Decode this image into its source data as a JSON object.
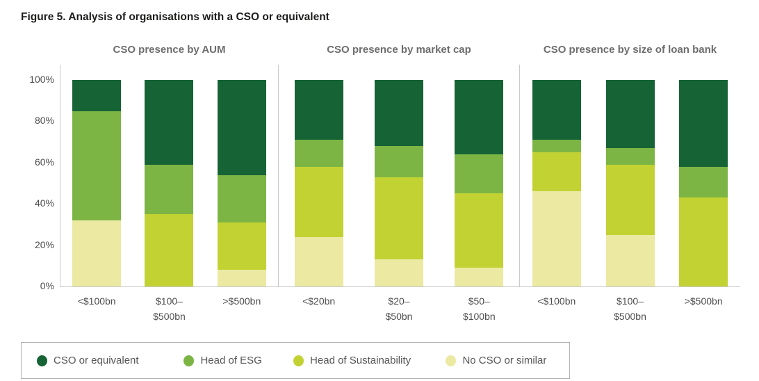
{
  "figure": {
    "title": "Figure 5. Analysis of organisations with a CSO or equivalent"
  },
  "colors": {
    "cso": "#166336",
    "esg": "#7cb544",
    "sustainability": "#c2d233",
    "no_cso": "#ece9a2",
    "axis_line": "#c9c9c9",
    "axis_text": "#4d4d4d",
    "panel_title_text": "#6d6d6d",
    "legend_border": "#b3b3b3"
  },
  "y_axis": {
    "ticks": [
      "100%",
      "80%",
      "60%",
      "40%",
      "20%",
      "0%"
    ],
    "min": 0,
    "max": 100
  },
  "legend": {
    "items": [
      {
        "label": "CSO or equivalent",
        "color_key": "cso"
      },
      {
        "label": "Head of ESG",
        "color_key": "esg"
      },
      {
        "label": "Head of Sustainability",
        "color_key": "sustainability"
      },
      {
        "label": "No CSO or similar",
        "color_key": "no_cso"
      }
    ]
  },
  "chart_data": [
    {
      "type": "bar",
      "subtype": "stacked-percent",
      "title": "CSO presence by AUM",
      "categories": [
        "<$100bn",
        "$100–\n$500bn",
        ">$500bn"
      ],
      "stack_order": "bottom-to-top",
      "series": [
        {
          "name": "No CSO or similar",
          "color_key": "no_cso",
          "values": [
            32,
            0,
            8
          ]
        },
        {
          "name": "Head of Sustainability",
          "color_key": "sustainability",
          "values": [
            0,
            35,
            23
          ]
        },
        {
          "name": "Head of ESG",
          "color_key": "esg",
          "values": [
            53,
            24,
            23
          ]
        },
        {
          "name": "CSO or equivalent",
          "color_key": "cso",
          "values": [
            15,
            41,
            46
          ]
        }
      ],
      "ylim": [
        0,
        100
      ],
      "y_tick_labels": [
        "0%",
        "20%",
        "40%",
        "60%",
        "80%",
        "100%"
      ],
      "grid": false,
      "legend_position": "bottom"
    },
    {
      "type": "bar",
      "subtype": "stacked-percent",
      "title": "CSO presence by market cap",
      "categories": [
        "<$20bn",
        "$20–\n$50bn",
        "$50–\n$100bn"
      ],
      "stack_order": "bottom-to-top",
      "series": [
        {
          "name": "No CSO or similar",
          "color_key": "no_cso",
          "values": [
            24,
            13,
            9
          ]
        },
        {
          "name": "Head of Sustainability",
          "color_key": "sustainability",
          "values": [
            34,
            40,
            36
          ]
        },
        {
          "name": "Head of ESG",
          "color_key": "esg",
          "values": [
            13,
            15,
            19
          ]
        },
        {
          "name": "CSO or equivalent",
          "color_key": "cso",
          "values": [
            29,
            32,
            36
          ]
        }
      ],
      "ylim": [
        0,
        100
      ],
      "y_tick_labels": [
        "0%",
        "20%",
        "40%",
        "60%",
        "80%",
        "100%"
      ],
      "grid": false,
      "legend_position": "bottom"
    },
    {
      "type": "bar",
      "subtype": "stacked-percent",
      "title": "CSO presence by size of loan bank",
      "categories": [
        "<$100bn",
        "$100–\n$500bn",
        ">$500bn"
      ],
      "stack_order": "bottom-to-top",
      "series": [
        {
          "name": "No CSO or similar",
          "color_key": "no_cso",
          "values": [
            46,
            25,
            0
          ]
        },
        {
          "name": "Head of Sustainability",
          "color_key": "sustainability",
          "values": [
            19,
            34,
            43
          ]
        },
        {
          "name": "Head of ESG",
          "color_key": "esg",
          "values": [
            6,
            8,
            15
          ]
        },
        {
          "name": "CSO or equivalent",
          "color_key": "cso",
          "values": [
            29,
            33,
            42
          ]
        }
      ],
      "ylim": [
        0,
        100
      ],
      "y_tick_labels": [
        "0%",
        "20%",
        "40%",
        "60%",
        "80%",
        "100%"
      ],
      "grid": false,
      "legend_position": "bottom"
    }
  ]
}
